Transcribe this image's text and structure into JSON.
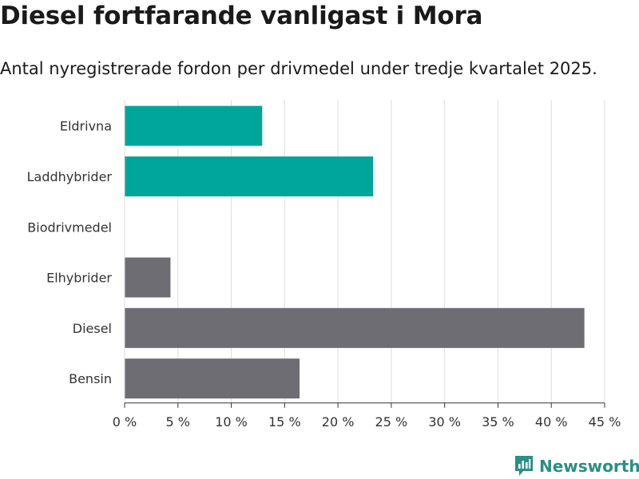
{
  "header": {
    "title": "Diesel fortfarande vanligast i Mora",
    "subtitle": "Antal nyregistrerade fordon per drivmedel under tredje kvartalet 2025."
  },
  "brand": {
    "name": "Newsworthy",
    "color": "#2a8f84"
  },
  "colors": {
    "highlight": "#00a59a",
    "default": "#6e6d73",
    "grid": "#dcdcdc",
    "axis": "#333333"
  },
  "chart_data": {
    "type": "bar",
    "orientation": "horizontal",
    "title": "Diesel fortfarande vanligast i Mora",
    "subtitle": "Antal nyregistrerade fordon per drivmedel under tredje kvartalet 2025.",
    "categories": [
      "Eldrivna",
      "Laddhybrider",
      "Biodrivmedel",
      "Elhybrider",
      "Diesel",
      "Bensin"
    ],
    "values": [
      12.9,
      23.3,
      0,
      4.3,
      43.1,
      16.4
    ],
    "highlighted": [
      true,
      true,
      false,
      false,
      false,
      false
    ],
    "xlim": [
      0,
      45
    ],
    "xticks": [
      0,
      5,
      10,
      15,
      20,
      25,
      30,
      35,
      40,
      45
    ],
    "tick_suffix": " %",
    "grid": true,
    "xlabel": "",
    "ylabel": ""
  }
}
